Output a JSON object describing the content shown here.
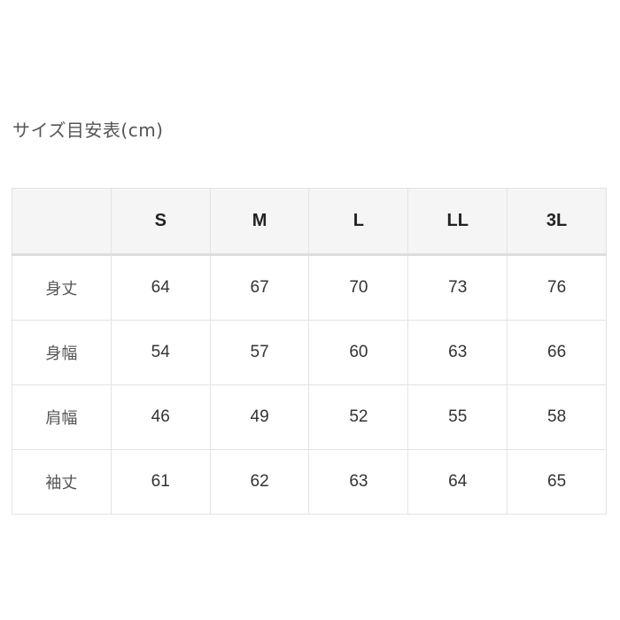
{
  "title": "サイズ目安表(cm)",
  "table": {
    "corner": "",
    "columns": [
      "S",
      "M",
      "L",
      "LL",
      "3L"
    ],
    "rows": [
      {
        "label": "身丈",
        "values": [
          "64",
          "67",
          "70",
          "73",
          "76"
        ]
      },
      {
        "label": "身幅",
        "values": [
          "54",
          "57",
          "60",
          "63",
          "66"
        ]
      },
      {
        "label": "肩幅",
        "values": [
          "46",
          "49",
          "52",
          "55",
          "58"
        ]
      },
      {
        "label": "袖丈",
        "values": [
          "61",
          "62",
          "63",
          "64",
          "65"
        ]
      }
    ]
  },
  "colors": {
    "header_bg": "#f5f5f5",
    "border": "#e3e3e3",
    "text": "#333333"
  }
}
